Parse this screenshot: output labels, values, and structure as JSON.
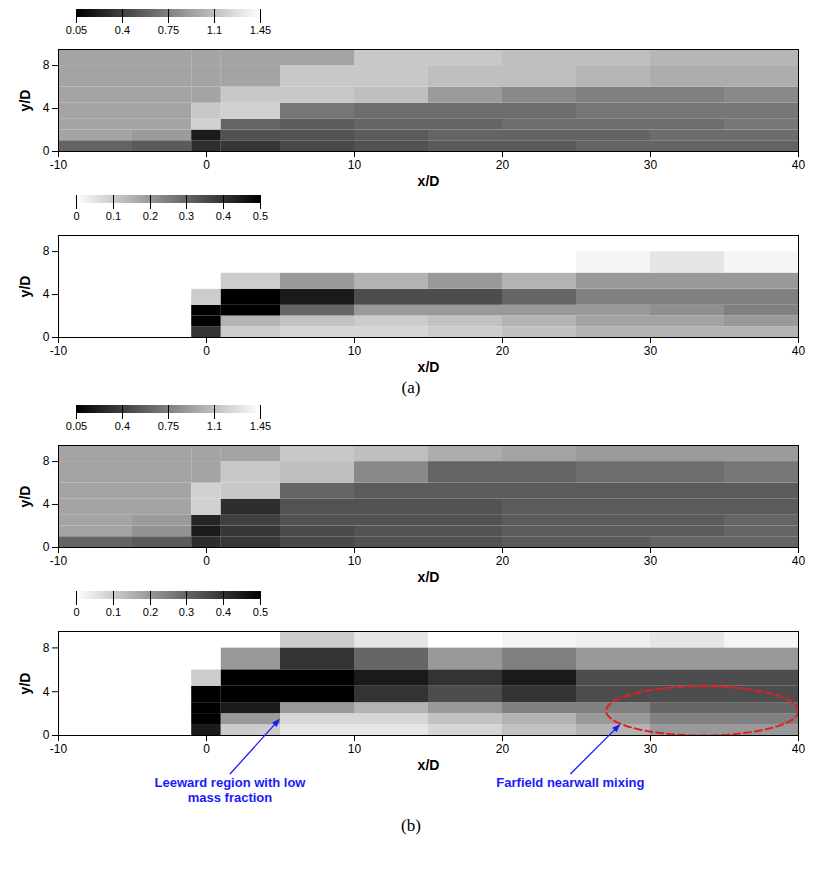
{
  "chart_data": [
    {
      "type": "heatmap",
      "xlabel": "x/D",
      "ylabel": "y/D",
      "xlim": [
        -10,
        40
      ],
      "xticks": [
        -10,
        0,
        10,
        20,
        30,
        40
      ],
      "ylim": [
        0,
        9.5
      ],
      "yticks": [
        0,
        4,
        8
      ],
      "x_edges": [
        -10,
        -5,
        -1,
        1,
        5,
        10,
        15,
        20,
        25,
        30,
        35,
        40
      ],
      "y_edges": [
        0,
        1,
        2,
        3,
        4.5,
        6,
        8,
        9.5
      ],
      "cells": [
        [
          0.6,
          0.55,
          0.3,
          0.35,
          0.45,
          0.5,
          0.55,
          0.55,
          0.6,
          0.6,
          0.6
        ],
        [
          0.95,
          0.9,
          0.2,
          0.5,
          0.5,
          0.55,
          0.6,
          0.6,
          0.6,
          0.65,
          0.65
        ],
        [
          0.95,
          0.95,
          1.2,
          0.6,
          0.55,
          0.6,
          0.6,
          0.65,
          0.65,
          0.65,
          0.7
        ],
        [
          0.95,
          0.95,
          1.15,
          1.2,
          0.7,
          0.65,
          0.65,
          0.65,
          0.7,
          0.7,
          0.7
        ],
        [
          0.95,
          0.95,
          0.95,
          1.15,
          1.15,
          1.1,
          0.9,
          0.8,
          0.75,
          0.75,
          0.8
        ],
        [
          0.95,
          0.95,
          0.95,
          0.95,
          1.15,
          1.15,
          1.1,
          1.1,
          1.05,
          1.0,
          1.0
        ],
        [
          0.95,
          0.95,
          0.95,
          0.95,
          0.95,
          1.15,
          1.15,
          1.1,
          1.1,
          1.05,
          1.05
        ]
      ],
      "colorbar": {
        "range": [
          0.05,
          1.45
        ],
        "ticks": [
          0.05,
          0.4,
          0.75,
          1.1,
          1.45
        ],
        "colors": [
          "#000000",
          "#ffffff"
        ]
      }
    },
    {
      "type": "heatmap",
      "xlabel": "x/D",
      "ylabel": "y/D",
      "xlim": [
        -10,
        40
      ],
      "xticks": [
        -10,
        0,
        10,
        20,
        30,
        40
      ],
      "ylim": [
        0,
        9.5
      ],
      "yticks": [
        0,
        4,
        8
      ],
      "x_edges": [
        -10,
        -5,
        -1,
        1,
        5,
        10,
        15,
        20,
        25,
        30,
        35,
        40
      ],
      "y_edges": [
        0,
        1,
        2,
        3,
        4.5,
        6,
        8,
        9.5
      ],
      "cells": [
        [
          0,
          0,
          0.4,
          0.1,
          0.08,
          0.08,
          0.1,
          0.12,
          0.15,
          0.15,
          0.15
        ],
        [
          0,
          0,
          0.5,
          0.15,
          0.12,
          0.1,
          0.12,
          0.15,
          0.18,
          0.18,
          0.2
        ],
        [
          0,
          0,
          0.5,
          0.5,
          0.3,
          0.2,
          0.2,
          0.2,
          0.2,
          0.22,
          0.25
        ],
        [
          0,
          0,
          0.1,
          0.5,
          0.45,
          0.35,
          0.35,
          0.3,
          0.25,
          0.25,
          0.25
        ],
        [
          0,
          0,
          0,
          0.1,
          0.2,
          0.15,
          0.2,
          0.15,
          0.2,
          0.2,
          0.2
        ],
        [
          0,
          0,
          0,
          0,
          0,
          0,
          0,
          0,
          0.02,
          0.05,
          0.02
        ],
        [
          0,
          0,
          0,
          0,
          0,
          0,
          0,
          0,
          0,
          0,
          0
        ]
      ],
      "colorbar": {
        "range": [
          0,
          0.5
        ],
        "ticks": [
          0,
          0.1,
          0.2,
          0.3,
          0.4,
          0.5
        ],
        "colors": [
          "#ffffff",
          "#000000"
        ]
      },
      "caption": "(a)"
    },
    {
      "type": "heatmap",
      "xlabel": "x/D",
      "ylabel": "y/D",
      "xlim": [
        -10,
        40
      ],
      "xticks": [
        -10,
        0,
        10,
        20,
        30,
        40
      ],
      "ylim": [
        0,
        9.5
      ],
      "yticks": [
        0,
        4,
        8
      ],
      "x_edges": [
        -10,
        -5,
        -1,
        1,
        5,
        10,
        15,
        20,
        25,
        30,
        35,
        40
      ],
      "y_edges": [
        0,
        1,
        2,
        3,
        4.5,
        6,
        8,
        9.5
      ],
      "cells": [
        [
          0.6,
          0.55,
          0.3,
          0.35,
          0.45,
          0.5,
          0.5,
          0.55,
          0.55,
          0.6,
          0.6
        ],
        [
          0.95,
          0.85,
          0.2,
          0.35,
          0.45,
          0.5,
          0.5,
          0.55,
          0.55,
          0.55,
          0.6
        ],
        [
          0.95,
          0.9,
          0.25,
          0.4,
          0.5,
          0.5,
          0.5,
          0.55,
          0.55,
          0.55,
          0.6
        ],
        [
          0.95,
          0.95,
          1.2,
          0.3,
          0.5,
          0.5,
          0.5,
          0.55,
          0.55,
          0.55,
          0.55
        ],
        [
          0.95,
          0.95,
          1.2,
          1.15,
          0.6,
          0.55,
          0.55,
          0.55,
          0.55,
          0.55,
          0.55
        ],
        [
          0.95,
          0.95,
          0.95,
          1.15,
          1.1,
          0.8,
          0.6,
          0.6,
          0.65,
          0.65,
          0.7
        ],
        [
          0.95,
          0.95,
          0.95,
          0.95,
          1.15,
          1.1,
          1.0,
          0.95,
          0.9,
          0.9,
          0.9
        ]
      ],
      "colorbar": {
        "range": [
          0.05,
          1.45
        ],
        "ticks": [
          0.05,
          0.4,
          0.75,
          1.1,
          1.45
        ],
        "colors": [
          "#000000",
          "#ffffff"
        ]
      }
    },
    {
      "type": "heatmap",
      "xlabel": "x/D",
      "ylabel": "y/D",
      "xlim": [
        -10,
        40
      ],
      "xticks": [
        -10,
        0,
        10,
        20,
        30,
        40
      ],
      "ylim": [
        0,
        9.5
      ],
      "yticks": [
        0,
        4,
        8
      ],
      "x_edges": [
        -10,
        -5,
        -1,
        1,
        5,
        10,
        15,
        20,
        25,
        30,
        35,
        40
      ],
      "y_edges": [
        0,
        1,
        2,
        3,
        4.5,
        6,
        8,
        9.5
      ],
      "cells": [
        [
          0,
          0,
          0.45,
          0.1,
          0.05,
          0.05,
          0.08,
          0.12,
          0.15,
          0.2,
          0.2
        ],
        [
          0,
          0,
          0.5,
          0.2,
          0.08,
          0.08,
          0.12,
          0.15,
          0.2,
          0.25,
          0.25
        ],
        [
          0,
          0,
          0.5,
          0.45,
          0.2,
          0.15,
          0.2,
          0.25,
          0.25,
          0.3,
          0.3
        ],
        [
          0,
          0,
          0.5,
          0.5,
          0.5,
          0.4,
          0.35,
          0.4,
          0.35,
          0.35,
          0.35
        ],
        [
          0,
          0,
          0.1,
          0.5,
          0.5,
          0.45,
          0.4,
          0.45,
          0.35,
          0.35,
          0.35
        ],
        [
          0,
          0,
          0,
          0.2,
          0.4,
          0.3,
          0.2,
          0.25,
          0.2,
          0.2,
          0.2
        ],
        [
          0,
          0,
          0,
          0,
          0.1,
          0.05,
          0,
          0.02,
          0.03,
          0.05,
          0.02
        ]
      ],
      "colorbar": {
        "range": [
          0,
          0.5
        ],
        "ticks": [
          0,
          0.1,
          0.2,
          0.3,
          0.4,
          0.5
        ],
        "colors": [
          "#ffffff",
          "#000000"
        ]
      },
      "annotations": [
        {
          "text": "Leeward region with low mass fraction",
          "x": 5,
          "y": 1.5,
          "color": "#1a1aff"
        },
        {
          "text": "Farfield nearwall mixing",
          "x": 28,
          "y": 1,
          "color": "#1a1aff"
        }
      ],
      "region": {
        "x": [
          27,
          40
        ],
        "y": [
          0,
          4.5
        ],
        "color": "#e02020",
        "line_style": "dashed"
      },
      "caption": "(b)"
    }
  ]
}
